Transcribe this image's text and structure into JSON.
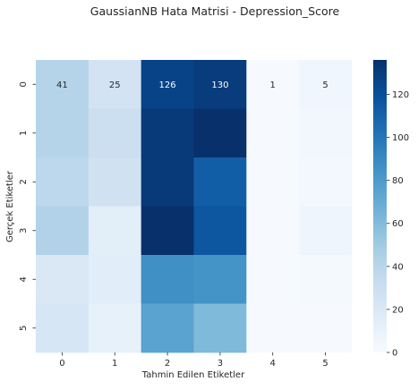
{
  "chart_data": {
    "type": "heatmap",
    "title": "GaussianNB Hata Matrisi - Depression_Score",
    "xlabel": "Tahmin Edilen Etiketler",
    "ylabel": "Gerçek Etiketler",
    "x_categories": [
      "0",
      "1",
      "2",
      "3",
      "4",
      "5"
    ],
    "y_categories": [
      "0",
      "1",
      "2",
      "3",
      "4",
      "5"
    ],
    "values": [
      [
        41,
        25,
        126,
        130,
        1,
        5
      ],
      [
        41,
        30,
        131,
        136,
        1,
        4
      ],
      [
        38,
        27,
        131,
        112,
        1,
        3
      ],
      [
        43,
        14,
        136,
        116,
        1,
        6
      ],
      [
        20,
        15,
        86,
        84,
        1,
        2
      ],
      [
        22,
        11,
        75,
        61,
        1,
        1
      ]
    ],
    "annotated_row": 0,
    "colormap": "Blues",
    "colorbar": {
      "range": [
        0,
        136
      ],
      "ticks": [
        "0",
        "20",
        "40",
        "60",
        "80",
        "100",
        "120"
      ]
    }
  }
}
